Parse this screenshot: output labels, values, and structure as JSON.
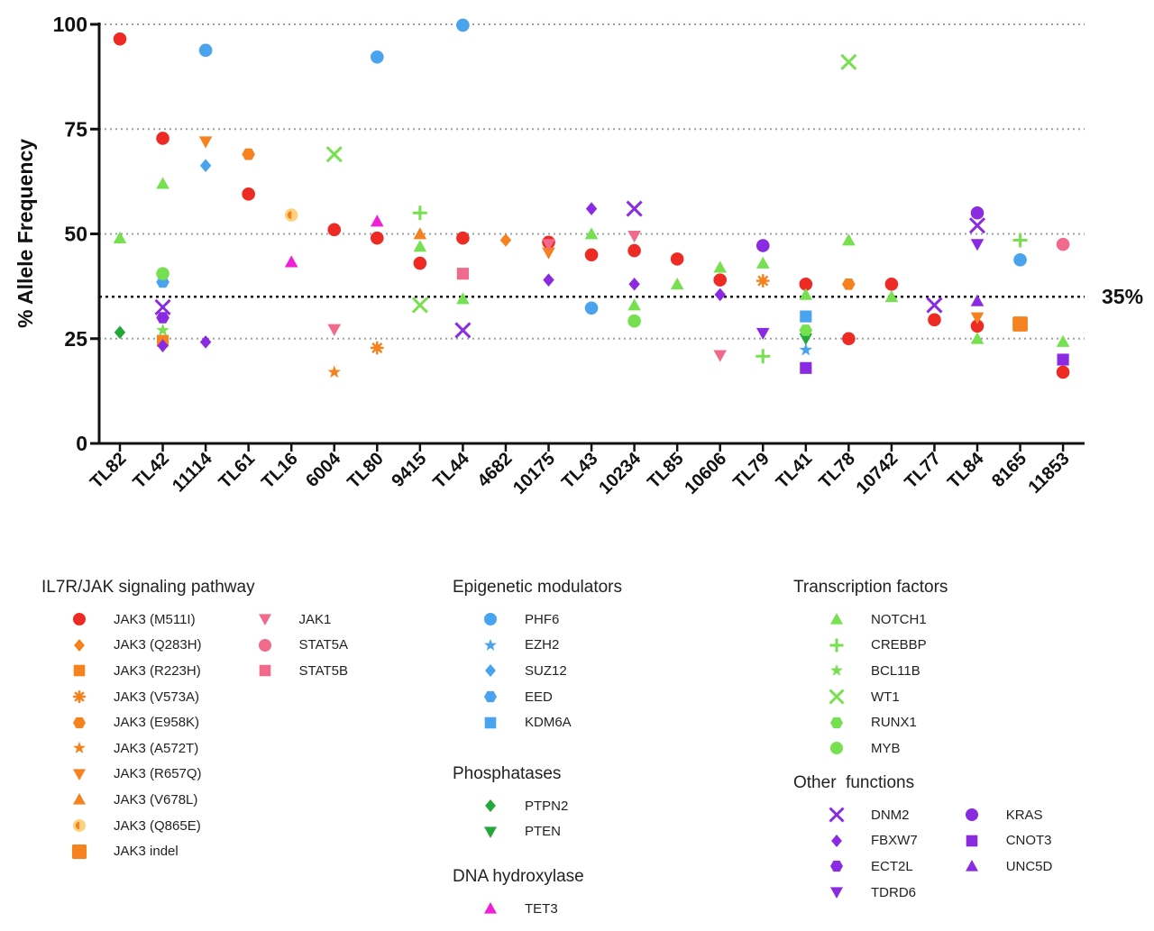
{
  "chart_data": {
    "type": "scatter",
    "ylabel": "% Allele Frequency",
    "ylim": [
      0,
      100
    ],
    "yticks": [
      0,
      25,
      50,
      75,
      100
    ],
    "gridlines": [
      25,
      50,
      75,
      100
    ],
    "threshold": {
      "value": 35,
      "label": "35%"
    },
    "categories": [
      "TL82",
      "TL42",
      "11114",
      "TL61",
      "TL16",
      "6004",
      "TL80",
      "9415",
      "TL44",
      "4682",
      "10175",
      "TL43",
      "10234",
      "TL85",
      "10606",
      "TL79",
      "TL41",
      "TL78",
      "10742",
      "TL77",
      "TL84",
      "8165",
      "11853"
    ],
    "series": [
      {
        "name": "JAK3 (M511I)",
        "marker": "circle",
        "color": "#ee2a24",
        "points": [
          [
            "TL82",
            96.5
          ],
          [
            "TL42",
            72.8
          ],
          [
            "TL61",
            59.5
          ],
          [
            "6004",
            51
          ],
          [
            "TL80",
            49
          ],
          [
            "9415",
            43
          ],
          [
            "TL44",
            49
          ],
          [
            "10175",
            48
          ],
          [
            "TL43",
            45
          ],
          [
            "10234",
            46
          ],
          [
            "TL85",
            44
          ],
          [
            "10606",
            39
          ],
          [
            "TL41",
            38
          ],
          [
            "TL78",
            25
          ],
          [
            "10742",
            38
          ],
          [
            "TL77",
            29.5
          ],
          [
            "TL84",
            28
          ],
          [
            "11853",
            17
          ]
        ]
      },
      {
        "name": "JAK3 (Q283H)",
        "marker": "diamond",
        "color": "#f5821f",
        "points": [
          [
            "4682",
            48.5
          ]
        ]
      },
      {
        "name": "JAK3 (R223H)",
        "marker": "square",
        "color": "#f5821f",
        "points": [
          [
            "TL42",
            24.5
          ]
        ]
      },
      {
        "name": "JAK3 (V573A)",
        "marker": "burst",
        "color": "#f5821f",
        "points": [
          [
            "TL80",
            22.8
          ],
          [
            "TL79",
            38.8
          ]
        ]
      },
      {
        "name": "JAK3 (E958K)",
        "marker": "hexagon",
        "color": "#f5821f",
        "points": [
          [
            "TL61",
            69
          ],
          [
            "TL78",
            38
          ]
        ]
      },
      {
        "name": "JAK3 (A572T)",
        "marker": "star",
        "color": "#f5821f",
        "points": [
          [
            "6004",
            17
          ]
        ]
      },
      {
        "name": "JAK3 (R657Q)",
        "marker": "triangle-down",
        "color": "#f5821f",
        "points": [
          [
            "11114",
            72
          ],
          [
            "10175",
            45.5
          ],
          [
            "TL84",
            30
          ]
        ]
      },
      {
        "name": "JAK3 (V678L)",
        "marker": "triangle-up",
        "color": "#f5821f",
        "points": [
          [
            "9415",
            50
          ]
        ]
      },
      {
        "name": "JAK3 (Q865E)",
        "marker": "half-circle",
        "color": "#f5821f",
        "points": [
          [
            "TL16",
            54.5
          ]
        ]
      },
      {
        "name": "JAK3 indel",
        "marker": "square-large",
        "color": "#f5821f",
        "points": [
          [
            "8165",
            28.5
          ]
        ]
      },
      {
        "name": "JAK1",
        "marker": "triangle-down",
        "color": "#f06a8c",
        "points": [
          [
            "6004",
            27.2
          ],
          [
            "10175",
            47.5
          ],
          [
            "10234",
            49.5
          ],
          [
            "10606",
            21
          ]
        ]
      },
      {
        "name": "STAT5A",
        "marker": "circle",
        "color": "#f06a8c",
        "points": [
          [
            "11853",
            47.5
          ]
        ]
      },
      {
        "name": "STAT5B",
        "marker": "square",
        "color": "#f06a8c",
        "points": [
          [
            "TL44",
            40.5
          ]
        ]
      },
      {
        "name": "PHF6",
        "marker": "circle",
        "color": "#4aa3ee",
        "points": [
          [
            "11114",
            93.8
          ],
          [
            "TL80",
            92.2
          ],
          [
            "TL44",
            99.8
          ],
          [
            "TL43",
            32.3
          ],
          [
            "8165",
            43.8
          ]
        ]
      },
      {
        "name": "EZH2",
        "marker": "star",
        "color": "#4aa3ee",
        "points": [
          [
            "TL41",
            22.3
          ]
        ]
      },
      {
        "name": "SUZ12",
        "marker": "diamond",
        "color": "#4aa3ee",
        "points": [
          [
            "11114",
            66.3
          ]
        ]
      },
      {
        "name": "EED",
        "marker": "hexagon",
        "color": "#4aa3ee",
        "points": [
          [
            "TL42",
            38.5
          ]
        ]
      },
      {
        "name": "KDM6A",
        "marker": "square",
        "color": "#4aa3ee",
        "points": [
          [
            "TL41",
            30.3
          ]
        ]
      },
      {
        "name": "PTPN2",
        "marker": "diamond",
        "color": "#22a93a",
        "points": [
          [
            "TL82",
            26.5
          ]
        ]
      },
      {
        "name": "PTEN",
        "marker": "triangle-down",
        "color": "#22a93a",
        "points": [
          [
            "TL41",
            25
          ]
        ]
      },
      {
        "name": "TET3",
        "marker": "triangle-up",
        "color": "#f01fd8",
        "points": [
          [
            "TL16",
            43.3
          ],
          [
            "TL80",
            53
          ]
        ]
      },
      {
        "name": "NOTCH1",
        "marker": "triangle-up",
        "color": "#77e050",
        "points": [
          [
            "TL82",
            49
          ],
          [
            "TL42",
            62
          ],
          [
            "9415",
            47
          ],
          [
            "TL44",
            34.5
          ],
          [
            "TL43",
            50
          ],
          [
            "10234",
            33
          ],
          [
            "TL85",
            38
          ],
          [
            "10606",
            42
          ],
          [
            "TL79",
            43
          ],
          [
            "TL41",
            35.5
          ],
          [
            "TL78",
            48.5
          ],
          [
            "10742",
            35
          ],
          [
            "TL84",
            25
          ],
          [
            "11853",
            24.3
          ]
        ]
      },
      {
        "name": "CREBBP",
        "marker": "plus",
        "color": "#77e050",
        "points": [
          [
            "9415",
            55
          ],
          [
            "TL79",
            20.8
          ],
          [
            "8165",
            48.5
          ]
        ]
      },
      {
        "name": "BCL11B",
        "marker": "star",
        "color": "#77e050",
        "points": [
          [
            "TL42",
            27
          ]
        ]
      },
      {
        "name": "WT1",
        "marker": "cross",
        "color": "#77e050",
        "points": [
          [
            "6004",
            69
          ],
          [
            "9415",
            33
          ],
          [
            "TL78",
            91
          ]
        ]
      },
      {
        "name": "RUNX1",
        "marker": "hexagon",
        "color": "#77e050",
        "points": [
          [
            "TL41",
            27
          ]
        ]
      },
      {
        "name": "MYB",
        "marker": "circle",
        "color": "#77e050",
        "points": [
          [
            "TL42",
            40.5
          ],
          [
            "10234",
            29.2
          ]
        ]
      },
      {
        "name": "DNM2",
        "marker": "cross",
        "color": "#8a2be2",
        "points": [
          [
            "TL42",
            32.5
          ],
          [
            "TL44",
            27
          ],
          [
            "10234",
            56
          ],
          [
            "TL77",
            33
          ],
          [
            "TL84",
            52
          ]
        ]
      },
      {
        "name": "FBXW7",
        "marker": "diamond",
        "color": "#8a2be2",
        "points": [
          [
            "TL42",
            23.3
          ],
          [
            "11114",
            24.2
          ],
          [
            "10175",
            39
          ],
          [
            "TL43",
            56
          ],
          [
            "10234",
            38
          ],
          [
            "10606",
            35.5
          ]
        ]
      },
      {
        "name": "ECT2L",
        "marker": "hexagon",
        "color": "#8a2be2",
        "points": [
          [
            "TL42",
            30
          ]
        ]
      },
      {
        "name": "TDRD6",
        "marker": "triangle-down",
        "color": "#8a2be2",
        "points": [
          [
            "TL79",
            26.3
          ],
          [
            "TL84",
            47.5
          ]
        ]
      },
      {
        "name": "KRAS",
        "marker": "circle",
        "color": "#8a2be2",
        "points": [
          [
            "TL79",
            47.2
          ],
          [
            "TL84",
            55
          ]
        ]
      },
      {
        "name": "CNOT3",
        "marker": "square",
        "color": "#8a2be2",
        "points": [
          [
            "TL41",
            18
          ],
          [
            "11853",
            20
          ]
        ]
      },
      {
        "name": "UNC5D",
        "marker": "triangle-up",
        "color": "#8a2be2",
        "points": [
          [
            "TL84",
            34
          ]
        ]
      }
    ]
  },
  "legend": {
    "il7r": {
      "title": "IL7R/JAK signaling pathway",
      "col1": [
        {
          "label": "JAK3 (M511I)",
          "marker": "circle",
          "color": "#ee2a24"
        },
        {
          "label": "JAK3 (Q283H)",
          "marker": "diamond",
          "color": "#f5821f"
        },
        {
          "label": "JAK3 (R223H)",
          "marker": "square",
          "color": "#f5821f"
        },
        {
          "label": "JAK3 (V573A)",
          "marker": "burst",
          "color": "#f5821f"
        },
        {
          "label": "JAK3 (E958K)",
          "marker": "hexagon",
          "color": "#f5821f"
        },
        {
          "label": "JAK3 (A572T)",
          "marker": "star",
          "color": "#f5821f"
        },
        {
          "label": "JAK3 (R657Q)",
          "marker": "triangle-down",
          "color": "#f5821f"
        },
        {
          "label": "JAK3 (V678L)",
          "marker": "triangle-up",
          "color": "#f5821f"
        },
        {
          "label": "JAK3 (Q865E)",
          "marker": "half-circle",
          "color": "#f5821f"
        },
        {
          "label": "JAK3 indel",
          "marker": "square-large",
          "color": "#f5821f"
        }
      ],
      "col2": [
        {
          "label": "JAK1",
          "marker": "triangle-down",
          "color": "#f06a8c"
        },
        {
          "label": "STAT5A",
          "marker": "circle",
          "color": "#f06a8c"
        },
        {
          "label": "STAT5B",
          "marker": "square",
          "color": "#f06a8c"
        }
      ]
    },
    "epigenetic": {
      "title": "Epigenetic modulators",
      "items": [
        {
          "label": "PHF6",
          "marker": "circle",
          "color": "#4aa3ee"
        },
        {
          "label": "EZH2",
          "marker": "star",
          "color": "#4aa3ee"
        },
        {
          "label": "SUZ12",
          "marker": "diamond",
          "color": "#4aa3ee"
        },
        {
          "label": "EED",
          "marker": "hexagon",
          "color": "#4aa3ee"
        },
        {
          "label": "KDM6A",
          "marker": "square",
          "color": "#4aa3ee"
        }
      ]
    },
    "phosphatases": {
      "title": "Phosphatases",
      "items": [
        {
          "label": "PTPN2",
          "marker": "diamond",
          "color": "#22a93a"
        },
        {
          "label": "PTEN",
          "marker": "triangle-down",
          "color": "#22a93a"
        }
      ]
    },
    "hydroxylase": {
      "title": "DNA hydroxylase",
      "items": [
        {
          "label": "TET3",
          "marker": "triangle-up",
          "color": "#f01fd8"
        }
      ]
    },
    "transcription": {
      "title": "Transcription factors",
      "items": [
        {
          "label": "NOTCH1",
          "marker": "triangle-up",
          "color": "#77e050"
        },
        {
          "label": "CREBBP",
          "marker": "plus",
          "color": "#77e050"
        },
        {
          "label": "BCL11B",
          "marker": "star",
          "color": "#77e050"
        },
        {
          "label": "WT1",
          "marker": "cross",
          "color": "#77e050"
        },
        {
          "label": "RUNX1",
          "marker": "hexagon",
          "color": "#77e050"
        },
        {
          "label": "MYB",
          "marker": "circle",
          "color": "#77e050"
        }
      ]
    },
    "other": {
      "title": "Other  functions",
      "col1": [
        {
          "label": "DNM2",
          "marker": "cross",
          "color": "#8a2be2"
        },
        {
          "label": "FBXW7",
          "marker": "diamond",
          "color": "#8a2be2"
        },
        {
          "label": "ECT2L",
          "marker": "hexagon",
          "color": "#8a2be2"
        },
        {
          "label": "TDRD6",
          "marker": "triangle-down",
          "color": "#8a2be2"
        }
      ],
      "col2": [
        {
          "label": "KRAS",
          "marker": "circle",
          "color": "#8a2be2"
        },
        {
          "label": "CNOT3",
          "marker": "square",
          "color": "#8a2be2"
        },
        {
          "label": "UNC5D",
          "marker": "triangle-up",
          "color": "#8a2be2"
        }
      ]
    }
  }
}
